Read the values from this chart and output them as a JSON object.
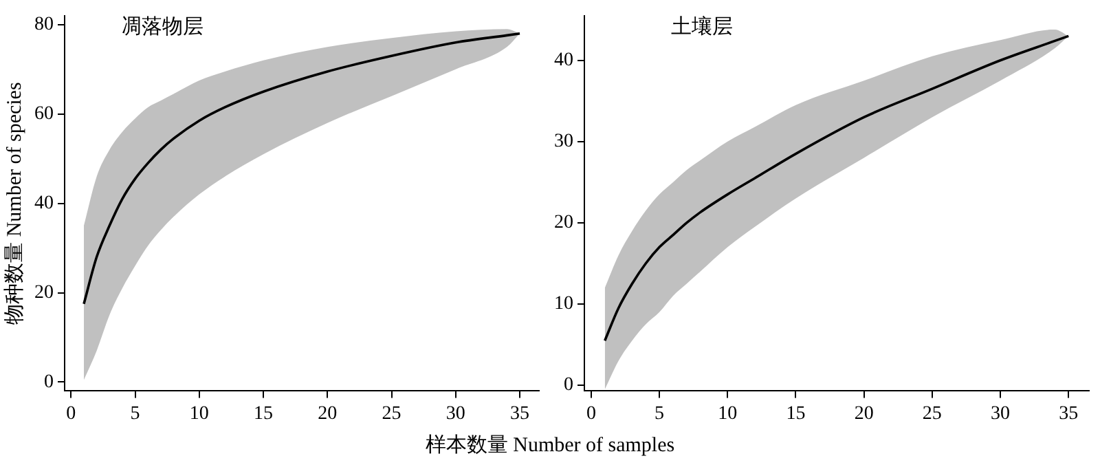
{
  "chart_data": [
    {
      "type": "line",
      "title": "凋落物层",
      "xlabel": "样本数量 Number of samples",
      "ylabel": "物种数量 Number of species",
      "xlim": [
        -0.5,
        36.5
      ],
      "xticks": [
        0,
        5,
        10,
        15,
        20,
        25,
        30,
        35
      ],
      "ylim": [
        -2,
        82
      ],
      "yticks": [
        0,
        20,
        40,
        60,
        80
      ],
      "grid": false,
      "series": [
        {
          "color": "#000000",
          "x": [
            1,
            2,
            3,
            4,
            5,
            6,
            7,
            8,
            10,
            12,
            15,
            20,
            25,
            30,
            34,
            35
          ],
          "values": [
            17.5,
            28,
            35,
            41,
            45.5,
            49,
            52,
            54.5,
            58.5,
            61.5,
            65,
            69.5,
            73,
            76,
            77.6,
            78
          ],
          "upper": [
            35,
            46,
            52,
            56,
            59,
            61.5,
            63,
            64.5,
            67.5,
            69.5,
            72,
            75,
            77,
            78.5,
            79,
            78
          ],
          "lower": [
            0.5,
            7,
            15,
            21,
            26,
            30.5,
            34,
            37,
            42,
            46,
            51,
            58,
            64,
            70,
            75,
            78
          ]
        }
      ]
    },
    {
      "type": "line",
      "title": "土壤层",
      "xlim": [
        -0.5,
        36.5
      ],
      "xticks": [
        0,
        5,
        10,
        15,
        20,
        25,
        30,
        35
      ],
      "ylim": [
        -0.7,
        45.5
      ],
      "yticks": [
        0,
        10,
        20,
        30,
        40
      ],
      "grid": false,
      "series": [
        {
          "color": "#000000",
          "x": [
            1,
            2,
            3,
            4,
            5,
            6,
            7,
            8,
            10,
            12,
            15,
            20,
            25,
            30,
            34,
            35
          ],
          "values": [
            5.5,
            9.5,
            12.5,
            15,
            17,
            18.5,
            20,
            21.3,
            23.5,
            25.5,
            28.5,
            33,
            36.5,
            40,
            42.4,
            43
          ],
          "upper": [
            12,
            16,
            19,
            21.5,
            23.5,
            25,
            26.5,
            27.7,
            30,
            31.8,
            34.5,
            37.5,
            40.5,
            42.5,
            43.8,
            43
          ],
          "lower": [
            -0.5,
            3,
            5.5,
            7.5,
            9,
            11,
            12.5,
            14,
            17,
            19.5,
            23,
            28,
            33,
            37.5,
            41.5,
            43
          ]
        }
      ]
    }
  ]
}
